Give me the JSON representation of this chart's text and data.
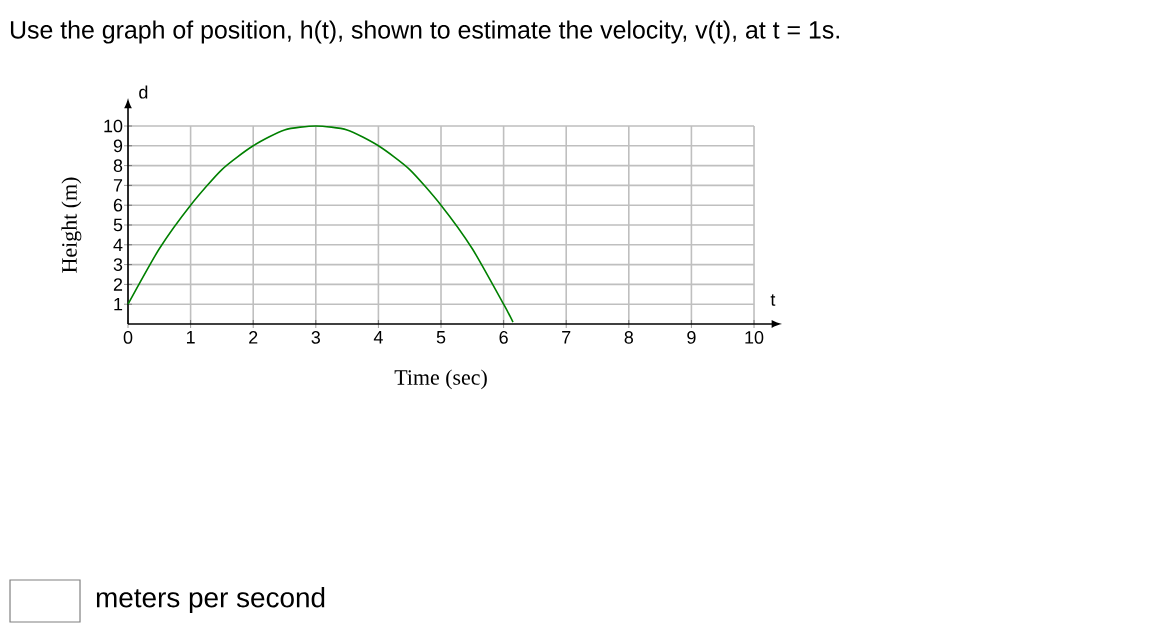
{
  "chart_data": {
    "type": "line",
    "title": "Use the graph of position, h(t), shown to estimate the velocity, v(t), at t = 1s.",
    "xlabel": "Time (sec)",
    "ylabel": "Height (m)",
    "annotations": [
      "t",
      "d",
      "meters per second"
    ],
    "x": [
      0,
      0.5,
      1,
      1.5,
      2,
      2.5,
      3,
      3.5,
      4,
      4.5,
      5,
      5.5,
      6,
      6.15
    ],
    "series": [
      {
        "color": "#008000",
        "values": [
          1,
          3.8,
          6,
          7.8,
          9,
          9.8,
          10,
          9.8,
          9,
          7.8,
          6,
          3.8,
          1,
          0.1
        ]
      }
    ],
    "xlim": [
      0,
      10
    ],
    "ylim": [
      0,
      10
    ],
    "xticks": [
      0,
      1,
      2,
      3,
      4,
      5,
      6,
      7,
      8,
      9,
      10
    ],
    "yticks": [
      1,
      2,
      3,
      4,
      5,
      6,
      7,
      8,
      9,
      10
    ],
    "grid": true,
    "marker": "none",
    "line_style": "solid"
  }
}
